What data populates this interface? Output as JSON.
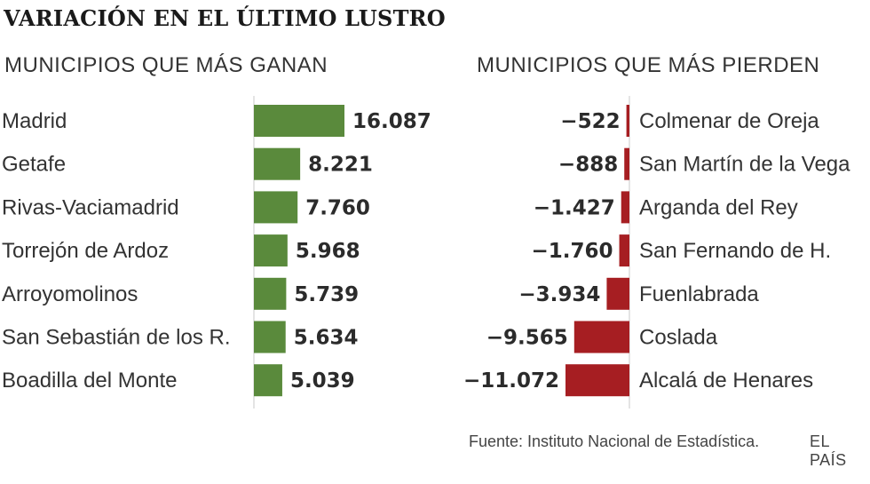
{
  "title": "VARIACIÓN EN EL ÚLTIMO LUSTRO",
  "footer": {
    "source": "Fuente: Instituto Nacional de Estadística.",
    "brand": "EL PAÍS"
  },
  "colors": {
    "gain": "#5a8a3c",
    "loss": "#a61e22",
    "axis": "#c8c8c8"
  },
  "chart_data": [
    {
      "type": "bar",
      "orientation": "horizontal",
      "title": "MUNICIPIOS QUE MÁS GANAN",
      "categories": [
        "Madrid",
        "Getafe",
        "Rivas-Vaciamadrid",
        "Torrejón de Ardoz",
        "Arroyomolinos",
        "San Sebastián de los R.",
        "Boadilla del Monte"
      ],
      "values": [
        16087,
        8221,
        7760,
        5968,
        5739,
        5634,
        5039
      ],
      "labels": [
        "16.087",
        "8.221",
        "7.760",
        "5.968",
        "5.739",
        "5.634",
        "5.039"
      ],
      "xlim": [
        0,
        16087
      ]
    },
    {
      "type": "bar",
      "orientation": "horizontal",
      "title": "MUNICIPIOS QUE MÁS PIERDEN",
      "categories": [
        "Colmenar de Oreja",
        "San Martín de la Vega",
        "Arganda del Rey",
        "San Fernando de H.",
        "Fuenlabrada",
        "Coslada",
        "Alcalá de Henares"
      ],
      "values": [
        -522,
        -888,
        -1427,
        -1760,
        -3934,
        -9565,
        -11072
      ],
      "labels": [
        "−522",
        "−888",
        "−1.427",
        "−1.760",
        "−3.934",
        "−9.565",
        "−11.072"
      ],
      "xlim": [
        -11072,
        0
      ]
    }
  ]
}
